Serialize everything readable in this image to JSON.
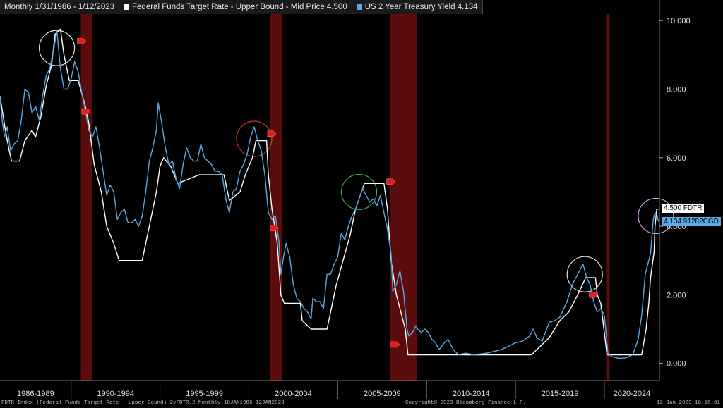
{
  "legend": {
    "period": "Monthly 1/31/1986 - 1/12/2023",
    "series1": "Federal Funds Target Rate - Upper Bound - Mid Price 4.500",
    "series2": "US 2 Year Treasury Yield 4.134"
  },
  "colors": {
    "fed": "#ffffff",
    "treasury": "#5aa8e6",
    "recession": "#6b0f0f",
    "bg": "#000000"
  },
  "last_tags": {
    "fed": "4.500 FDTR",
    "treasury": "4.134 91282CGD"
  },
  "footer": {
    "left": "FDTR Index (Federal Funds Target Rate - Upper Bound) 2yFDTR.2  Monthly 18JAN1986-12JAN2023",
    "center": "Copyright© 2023 Bloomberg Finance L.P.",
    "right": "12-Jan-2023 16:16:01"
  },
  "chart_data": {
    "type": "line",
    "x_range": [
      1986.0,
      2023.1
    ],
    "ylim": [
      -0.5,
      10.6
    ],
    "y_ticks": [
      "0.000",
      "2.000",
      "4.000",
      "6.000",
      "8.000",
      "10.000"
    ],
    "x_tick_labels": [
      "1986-1989",
      "1990-1994",
      "1995-1999",
      "2000-2004",
      "2005-2009",
      "2010-2014",
      "2015-2019",
      "2020-2024"
    ],
    "recessions": [
      [
        1990.55,
        1991.2
      ],
      [
        2001.2,
        2001.85
      ],
      [
        2007.95,
        2009.45
      ],
      [
        2020.1,
        2020.3
      ]
    ],
    "series": [
      {
        "name": "Federal Funds Target Rate - Upper Bound - Mid Price",
        "points": [
          [
            1986.0,
            7.8
          ],
          [
            1986.3,
            6.8
          ],
          [
            1986.5,
            6.25
          ],
          [
            1986.65,
            5.9
          ],
          [
            1987.1,
            5.9
          ],
          [
            1987.4,
            6.5
          ],
          [
            1987.8,
            6.8
          ],
          [
            1988.0,
            6.6
          ],
          [
            1988.3,
            7.2
          ],
          [
            1988.6,
            8.1
          ],
          [
            1988.9,
            8.7
          ],
          [
            1989.1,
            9.6
          ],
          [
            1989.4,
            9.75
          ],
          [
            1989.6,
            9.0
          ],
          [
            1989.9,
            8.25
          ],
          [
            1990.4,
            8.25
          ],
          [
            1990.8,
            7.5
          ],
          [
            1991.0,
            7.0
          ],
          [
            1991.3,
            5.8
          ],
          [
            1991.7,
            5.0
          ],
          [
            1992.0,
            4.0
          ],
          [
            1992.4,
            3.5
          ],
          [
            1992.7,
            3.0
          ],
          [
            1994.0,
            3.0
          ],
          [
            1994.2,
            3.5
          ],
          [
            1994.5,
            4.25
          ],
          [
            1994.8,
            5.0
          ],
          [
            1995.0,
            5.75
          ],
          [
            1995.2,
            6.0
          ],
          [
            1995.6,
            5.75
          ],
          [
            1996.0,
            5.25
          ],
          [
            1997.2,
            5.5
          ],
          [
            1998.6,
            5.5
          ],
          [
            1998.9,
            4.75
          ],
          [
            1999.5,
            5.0
          ],
          [
            1999.8,
            5.5
          ],
          [
            2000.2,
            6.0
          ],
          [
            2000.4,
            6.5
          ],
          [
            2001.0,
            6.5
          ],
          [
            2001.1,
            5.5
          ],
          [
            2001.3,
            4.5
          ],
          [
            2001.6,
            3.5
          ],
          [
            2001.8,
            2.0
          ],
          [
            2002.0,
            1.75
          ],
          [
            2002.9,
            1.75
          ],
          [
            2003.0,
            1.25
          ],
          [
            2003.5,
            1.0
          ],
          [
            2004.4,
            1.0
          ],
          [
            2004.6,
            1.5
          ],
          [
            2004.9,
            2.25
          ],
          [
            2005.3,
            3.0
          ],
          [
            2005.7,
            3.75
          ],
          [
            2006.0,
            4.5
          ],
          [
            2006.5,
            5.25
          ],
          [
            2007.6,
            5.25
          ],
          [
            2007.8,
            4.5
          ],
          [
            2008.0,
            3.0
          ],
          [
            2008.3,
            2.0
          ],
          [
            2008.8,
            1.0
          ],
          [
            2008.95,
            0.25
          ],
          [
            2015.9,
            0.25
          ],
          [
            2016.9,
            0.75
          ],
          [
            2017.5,
            1.25
          ],
          [
            2018.0,
            1.5
          ],
          [
            2018.5,
            2.0
          ],
          [
            2018.95,
            2.5
          ],
          [
            2019.5,
            2.5
          ],
          [
            2019.6,
            2.0
          ],
          [
            2019.8,
            1.75
          ],
          [
            2020.15,
            0.25
          ],
          [
            2022.1,
            0.25
          ],
          [
            2022.35,
            1.0
          ],
          [
            2022.5,
            1.75
          ],
          [
            2022.6,
            2.5
          ],
          [
            2022.8,
            3.25
          ],
          [
            2022.85,
            4.0
          ],
          [
            2022.95,
            4.5
          ],
          [
            2023.05,
            4.5
          ]
        ]
      },
      {
        "name": "US 2 Year Treasury Yield",
        "points": [
          [
            1986.0,
            7.8
          ],
          [
            1986.1,
            7.2
          ],
          [
            1986.25,
            6.6
          ],
          [
            1986.4,
            6.9
          ],
          [
            1986.6,
            6.2
          ],
          [
            1986.8,
            6.4
          ],
          [
            1987.0,
            6.5
          ],
          [
            1987.2,
            7.1
          ],
          [
            1987.4,
            8.0
          ],
          [
            1987.6,
            7.9
          ],
          [
            1987.8,
            7.3
          ],
          [
            1988.0,
            7.5
          ],
          [
            1988.2,
            7.1
          ],
          [
            1988.4,
            7.8
          ],
          [
            1988.6,
            8.4
          ],
          [
            1988.8,
            8.6
          ],
          [
            1989.0,
            9.1
          ],
          [
            1989.2,
            9.7
          ],
          [
            1989.4,
            8.6
          ],
          [
            1989.6,
            8.0
          ],
          [
            1989.8,
            8.0
          ],
          [
            1990.0,
            8.3
          ],
          [
            1990.2,
            8.8
          ],
          [
            1990.4,
            8.5
          ],
          [
            1990.6,
            7.9
          ],
          [
            1990.8,
            7.4
          ],
          [
            1991.0,
            6.8
          ],
          [
            1991.2,
            6.6
          ],
          [
            1991.4,
            6.9
          ],
          [
            1991.6,
            6.3
          ],
          [
            1991.8,
            5.6
          ],
          [
            1992.0,
            4.9
          ],
          [
            1992.2,
            5.2
          ],
          [
            1992.4,
            5.0
          ],
          [
            1992.6,
            4.2
          ],
          [
            1992.8,
            4.4
          ],
          [
            1993.0,
            4.5
          ],
          [
            1993.2,
            4.1
          ],
          [
            1993.4,
            4.1
          ],
          [
            1993.6,
            4.2
          ],
          [
            1993.8,
            4.0
          ],
          [
            1994.0,
            4.3
          ],
          [
            1994.2,
            5.0
          ],
          [
            1994.4,
            5.9
          ],
          [
            1994.6,
            6.3
          ],
          [
            1994.8,
            6.8
          ],
          [
            1994.9,
            7.6
          ],
          [
            1995.1,
            7.0
          ],
          [
            1995.3,
            6.3
          ],
          [
            1995.5,
            5.8
          ],
          [
            1995.7,
            5.9
          ],
          [
            1995.9,
            5.4
          ],
          [
            1996.1,
            5.1
          ],
          [
            1996.3,
            5.8
          ],
          [
            1996.5,
            6.3
          ],
          [
            1996.7,
            6.0
          ],
          [
            1996.9,
            5.9
          ],
          [
            1997.1,
            5.9
          ],
          [
            1997.3,
            6.4
          ],
          [
            1997.5,
            6.0
          ],
          [
            1997.7,
            5.9
          ],
          [
            1997.9,
            5.8
          ],
          [
            1998.1,
            5.6
          ],
          [
            1998.3,
            5.6
          ],
          [
            1998.5,
            5.5
          ],
          [
            1998.7,
            4.8
          ],
          [
            1998.9,
            4.4
          ],
          [
            1999.1,
            5.0
          ],
          [
            1999.3,
            5.1
          ],
          [
            1999.5,
            5.6
          ],
          [
            1999.7,
            5.8
          ],
          [
            1999.9,
            6.1
          ],
          [
            2000.1,
            6.6
          ],
          [
            2000.3,
            6.9
          ],
          [
            2000.5,
            6.5
          ],
          [
            2000.7,
            6.2
          ],
          [
            2000.9,
            5.5
          ],
          [
            2001.1,
            4.4
          ],
          [
            2001.3,
            4.2
          ],
          [
            2001.5,
            4.3
          ],
          [
            2001.7,
            3.5
          ],
          [
            2001.8,
            2.6
          ],
          [
            2001.95,
            3.1
          ],
          [
            2002.1,
            3.5
          ],
          [
            2002.3,
            3.1
          ],
          [
            2002.5,
            2.3
          ],
          [
            2002.7,
            1.9
          ],
          [
            2002.9,
            1.8
          ],
          [
            2003.1,
            1.6
          ],
          [
            2003.3,
            1.5
          ],
          [
            2003.5,
            1.3
          ],
          [
            2003.6,
            1.9
          ],
          [
            2003.8,
            1.8
          ],
          [
            2004.0,
            1.8
          ],
          [
            2004.2,
            1.6
          ],
          [
            2004.4,
            2.6
          ],
          [
            2004.6,
            2.6
          ],
          [
            2004.8,
            2.9
          ],
          [
            2005.0,
            3.1
          ],
          [
            2005.2,
            3.8
          ],
          [
            2005.4,
            3.6
          ],
          [
            2005.6,
            4.0
          ],
          [
            2005.8,
            4.3
          ],
          [
            2006.0,
            4.5
          ],
          [
            2006.2,
            4.8
          ],
          [
            2006.4,
            5.1
          ],
          [
            2006.6,
            4.9
          ],
          [
            2006.8,
            4.7
          ],
          [
            2007.0,
            4.8
          ],
          [
            2007.2,
            4.6
          ],
          [
            2007.4,
            4.9
          ],
          [
            2007.6,
            4.4
          ],
          [
            2007.8,
            3.9
          ],
          [
            2008.0,
            3.2
          ],
          [
            2008.1,
            2.1
          ],
          [
            2008.3,
            2.3
          ],
          [
            2008.5,
            2.7
          ],
          [
            2008.7,
            2.1
          ],
          [
            2008.9,
            1.0
          ],
          [
            2009.0,
            0.8
          ],
          [
            2009.2,
            0.9
          ],
          [
            2009.4,
            1.1
          ],
          [
            2009.5,
            1.0
          ],
          [
            2009.7,
            0.9
          ],
          [
            2009.9,
            1.0
          ],
          [
            2010.1,
            0.9
          ],
          [
            2010.3,
            0.7
          ],
          [
            2010.5,
            0.6
          ],
          [
            2010.7,
            0.4
          ],
          [
            2011.0,
            0.6
          ],
          [
            2011.2,
            0.7
          ],
          [
            2011.5,
            0.4
          ],
          [
            2011.8,
            0.25
          ],
          [
            2012.2,
            0.3
          ],
          [
            2012.6,
            0.25
          ],
          [
            2013.0,
            0.27
          ],
          [
            2013.4,
            0.3
          ],
          [
            2013.8,
            0.35
          ],
          [
            2014.2,
            0.4
          ],
          [
            2014.6,
            0.5
          ],
          [
            2015.0,
            0.6
          ],
          [
            2015.4,
            0.65
          ],
          [
            2015.8,
            0.8
          ],
          [
            2016.0,
            1.0
          ],
          [
            2016.2,
            0.75
          ],
          [
            2016.5,
            0.65
          ],
          [
            2016.9,
            1.2
          ],
          [
            2017.2,
            1.25
          ],
          [
            2017.5,
            1.35
          ],
          [
            2017.9,
            1.8
          ],
          [
            2018.2,
            2.3
          ],
          [
            2018.5,
            2.6
          ],
          [
            2018.8,
            2.9
          ],
          [
            2019.0,
            2.5
          ],
          [
            2019.2,
            2.3
          ],
          [
            2019.4,
            1.8
          ],
          [
            2019.6,
            1.5
          ],
          [
            2019.8,
            1.6
          ],
          [
            2020.0,
            1.4
          ],
          [
            2020.2,
            0.3
          ],
          [
            2020.4,
            0.2
          ],
          [
            2020.8,
            0.15
          ],
          [
            2021.2,
            0.16
          ],
          [
            2021.6,
            0.25
          ],
          [
            2021.9,
            0.7
          ],
          [
            2022.1,
            1.4
          ],
          [
            2022.3,
            2.6
          ],
          [
            2022.45,
            2.9
          ],
          [
            2022.6,
            3.2
          ],
          [
            2022.75,
            4.2
          ],
          [
            2022.85,
            4.4
          ],
          [
            2022.95,
            4.35
          ],
          [
            2023.05,
            4.134
          ]
        ]
      }
    ],
    "annotations": [
      {
        "type": "circle",
        "color": "#e0e0e0",
        "x": 1989.2,
        "y": 9.2
      },
      {
        "type": "circle",
        "color": "#c0392b",
        "x": 2000.3,
        "y": 6.55
      },
      {
        "type": "circle",
        "color": "#3fae49",
        "x": 2006.2,
        "y": 5.0
      },
      {
        "type": "circle",
        "color": "#e0e0e0",
        "x": 2018.9,
        "y": 2.6
      },
      {
        "type": "circle",
        "color": "#c79ad8",
        "x": 2022.9,
        "y": 4.3
      }
    ],
    "markers": [
      [
        1990.55,
        9.4
      ],
      [
        1990.8,
        7.35
      ],
      [
        2001.25,
        6.7
      ],
      [
        2001.4,
        3.95
      ],
      [
        2007.95,
        5.3
      ],
      [
        2008.2,
        0.55
      ],
      [
        2019.35,
        2.0
      ]
    ]
  }
}
